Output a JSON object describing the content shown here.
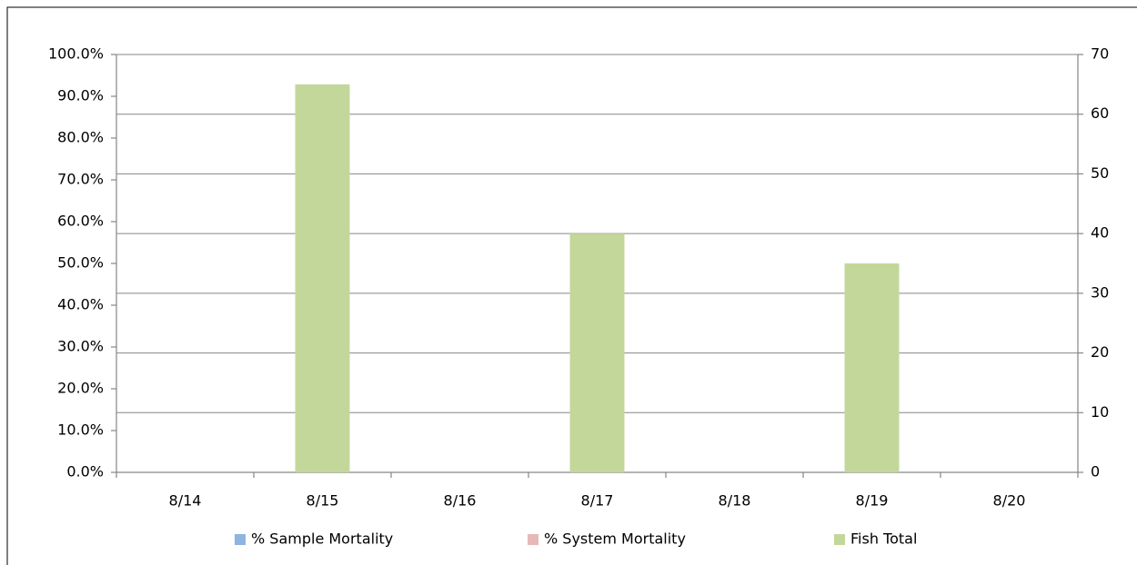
{
  "chart_data": {
    "type": "bar",
    "categories": [
      "8/14",
      "8/15",
      "8/16",
      "8/17",
      "8/18",
      "8/19",
      "8/20"
    ],
    "series": [
      {
        "name": "% Sample Mortality",
        "color": "#8db4e2",
        "values": [
          0,
          0,
          0,
          0,
          0,
          0,
          0
        ]
      },
      {
        "name": "% System Mortality",
        "color": "#e6b9b8",
        "values": [
          0,
          0,
          0,
          0,
          0,
          0,
          0
        ]
      },
      {
        "name": "Fish Total",
        "color": "#c4d79b",
        "axis": "y2",
        "values": [
          0,
          65,
          0,
          40,
          0,
          35,
          0
        ]
      }
    ],
    "ylim": [
      0,
      100
    ],
    "yticks": [
      {
        "value": 0,
        "label": "0.0%"
      },
      {
        "value": 10,
        "label": "10.0%"
      },
      {
        "value": 20,
        "label": "20.0%"
      },
      {
        "value": 30,
        "label": "30.0%"
      },
      {
        "value": 40,
        "label": "40.0%"
      },
      {
        "value": 50,
        "label": "50.0%"
      },
      {
        "value": 60,
        "label": "60.0%"
      },
      {
        "value": 70,
        "label": "70.0%"
      },
      {
        "value": 80,
        "label": "80.0%"
      },
      {
        "value": 90,
        "label": "90.0%"
      },
      {
        "value": 100,
        "label": "100.0%"
      }
    ],
    "y2lim": [
      0,
      70
    ],
    "y2ticks": [
      0,
      10,
      20,
      30,
      40,
      50,
      60,
      70
    ],
    "grid": "y2",
    "legend": "bottom"
  }
}
